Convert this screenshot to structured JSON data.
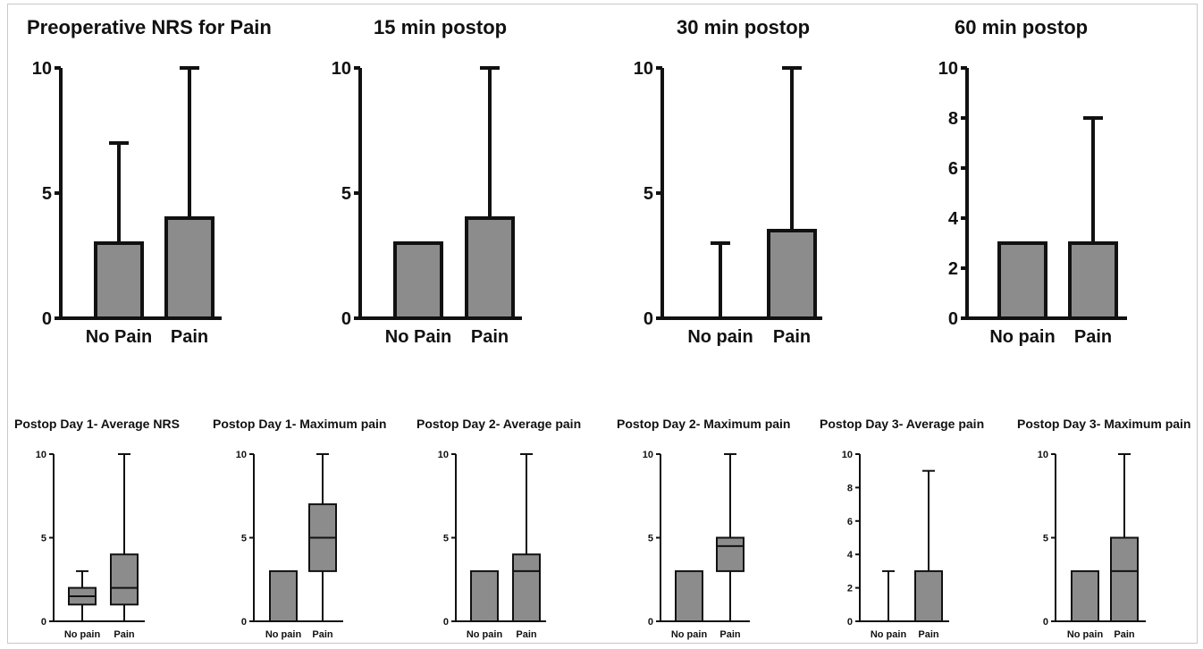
{
  "chart_data": [
    {
      "type": "box",
      "title": "Preoperative NRS for Pain",
      "categories": [
        "No Pain",
        "Pain"
      ],
      "ylim": [
        0,
        10
      ],
      "yticks": [
        0,
        5,
        10
      ],
      "boxes": [
        {
          "min": 0,
          "q1": 0,
          "median": 0,
          "q3": 3,
          "max": 7
        },
        {
          "min": 0,
          "q1": 0,
          "median": 0,
          "q3": 4,
          "max": 10
        }
      ]
    },
    {
      "type": "box",
      "title": "15 min postop",
      "categories": [
        "No Pain",
        "Pain"
      ],
      "ylim": [
        0,
        10
      ],
      "yticks": [
        0,
        5,
        10
      ],
      "boxes": [
        {
          "min": 0,
          "q1": 0,
          "median": 0,
          "q3": 3,
          "max": 3
        },
        {
          "min": 0,
          "q1": 0,
          "median": 0,
          "q3": 4,
          "max": 10
        }
      ]
    },
    {
      "type": "box",
      "title": "30 min postop",
      "categories": [
        "No pain",
        "Pain"
      ],
      "ylim": [
        0,
        10
      ],
      "yticks": [
        0,
        5,
        10
      ],
      "boxes": [
        {
          "min": 0,
          "q1": 0,
          "median": 0,
          "q3": 0,
          "max": 3
        },
        {
          "min": 0,
          "q1": 0,
          "median": 0,
          "q3": 3.5,
          "max": 10
        }
      ]
    },
    {
      "type": "box",
      "title": "60 min postop",
      "categories": [
        "No pain",
        "Pain"
      ],
      "ylim": [
        0,
        10
      ],
      "yticks": [
        0,
        2,
        4,
        6,
        8,
        10
      ],
      "boxes": [
        {
          "min": 0,
          "q1": 0,
          "median": 0,
          "q3": 3,
          "max": 3
        },
        {
          "min": 0,
          "q1": 0,
          "median": 0,
          "q3": 3,
          "max": 8
        }
      ]
    },
    {
      "type": "box",
      "title": "Postop Day 1- Average NRS",
      "categories": [
        "No pain",
        "Pain"
      ],
      "ylim": [
        0,
        10
      ],
      "yticks": [
        0,
        5,
        10
      ],
      "boxes": [
        {
          "min": 0,
          "q1": 1,
          "median": 1.5,
          "q3": 2,
          "max": 3
        },
        {
          "min": 0,
          "q1": 1,
          "median": 2,
          "q3": 4,
          "max": 10
        }
      ]
    },
    {
      "type": "box",
      "title": "Postop Day 1- Maximum pain",
      "categories": [
        "No pain",
        "Pain"
      ],
      "ylim": [
        0,
        10
      ],
      "yticks": [
        0,
        5,
        10
      ],
      "boxes": [
        {
          "min": 0,
          "q1": 0,
          "median": 0,
          "q3": 3,
          "max": 3
        },
        {
          "min": 0,
          "q1": 3,
          "median": 5,
          "q3": 7,
          "max": 10
        }
      ]
    },
    {
      "type": "box",
      "title": "Postop Day 2- Average pain",
      "categories": [
        "No pain",
        "Pain"
      ],
      "ylim": [
        0,
        10
      ],
      "yticks": [
        0,
        5,
        10
      ],
      "boxes": [
        {
          "min": 0,
          "q1": 0,
          "median": 0,
          "q3": 3,
          "max": 3
        },
        {
          "min": 0,
          "q1": 0,
          "median": 3,
          "q3": 4,
          "max": 10
        }
      ]
    },
    {
      "type": "box",
      "title": "Postop Day 2- Maximum pain",
      "categories": [
        "No pain",
        "Pain"
      ],
      "ylim": [
        0,
        10
      ],
      "yticks": [
        0,
        5,
        10
      ],
      "boxes": [
        {
          "min": 0,
          "q1": 0,
          "median": 0,
          "q3": 3,
          "max": 3
        },
        {
          "min": 0,
          "q1": 3,
          "median": 4.5,
          "q3": 5,
          "max": 10
        }
      ]
    },
    {
      "type": "box",
      "title": "Postop Day 3- Average pain",
      "categories": [
        "No pain",
        "Pain"
      ],
      "ylim": [
        0,
        10
      ],
      "yticks": [
        0,
        2,
        4,
        6,
        8,
        10
      ],
      "boxes": [
        {
          "min": 0,
          "q1": 0,
          "median": 0,
          "q3": 0,
          "max": 3
        },
        {
          "min": 0,
          "q1": 0,
          "median": 3,
          "q3": 3,
          "max": 9
        }
      ]
    },
    {
      "type": "box",
      "title": "Postop Day 3- Maximum pain",
      "categories": [
        "No pain",
        "Pain"
      ],
      "ylim": [
        0,
        10
      ],
      "yticks": [
        0,
        5,
        10
      ],
      "boxes": [
        {
          "min": 0,
          "q1": 0,
          "median": 0,
          "q3": 3,
          "max": 3
        },
        {
          "min": 0,
          "q1": 0,
          "median": 3,
          "q3": 5,
          "max": 10
        }
      ]
    }
  ],
  "colors": {
    "box_fill": "#8c8c8c",
    "stroke": "#111111"
  }
}
